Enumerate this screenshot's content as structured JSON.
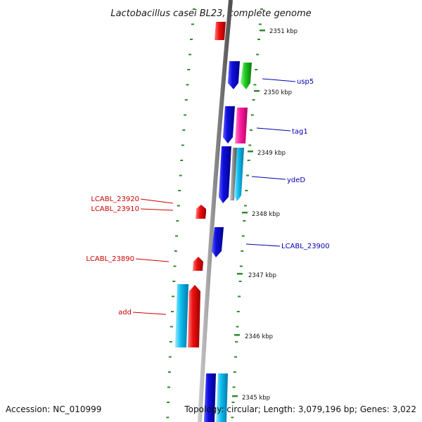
{
  "title": "Lactobacillus casei BL23, complete genome",
  "footer": {
    "accession": "Accession: NC_010999",
    "topology": "Topology: circular; Length: 3,079,196 bp; Genes: 3,022"
  },
  "kbp_labels": [
    "2351 kbp",
    "2350 kbp",
    "2349 kbp",
    "2348 kbp",
    "2347 kbp",
    "2346 kbp",
    "2345 kbp"
  ],
  "gene_labels": {
    "usp5": "usp5",
    "tag1": "tag1",
    "ydeD": "ydeD",
    "lcabl_23900": "LCABL_23900",
    "lcabl_23920": "LCABL_23920",
    "lcabl_23910": "LCABL_23910",
    "lcabl_23890": "LCABL_23890",
    "add": "add"
  },
  "colors": {
    "blue": "#1010e0",
    "green": "#22cc22",
    "magenta": "#ff1fa0",
    "cyan": "#10c0f0",
    "red": "#ee1010",
    "backbone": "#888888",
    "tick": "#2e8b2e",
    "label_blue": "#0000b0",
    "label_red": "#cc0000"
  }
}
